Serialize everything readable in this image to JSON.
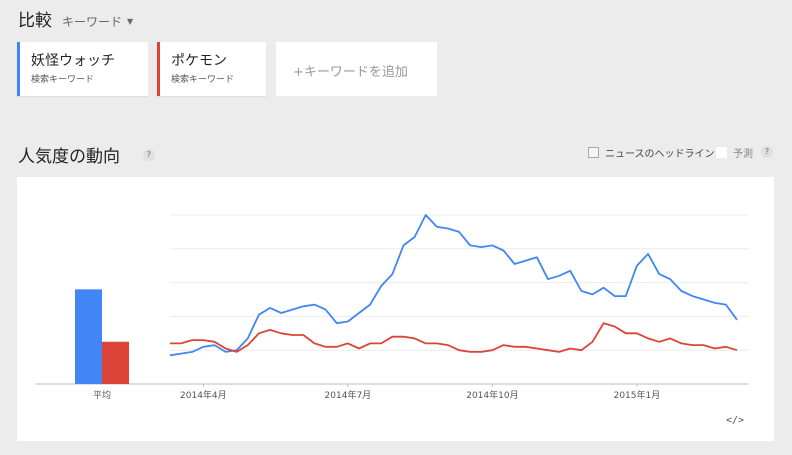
{
  "header": {
    "title": "比較",
    "mode_label": "キーワード"
  },
  "keywords": [
    {
      "name": "妖怪ウォッチ",
      "type": "検索キーワード",
      "color": "#4285f4"
    },
    {
      "name": "ポケモン",
      "type": "検索キーワード",
      "color": "#db4437"
    }
  ],
  "add_keyword_label": "+キーワードを追加",
  "section": {
    "title": "人気度の動向",
    "news_headlines_label": "ニュースのヘッドライン",
    "forecast_label": "予測"
  },
  "chart_data": {
    "type": "line",
    "ylim": [
      0,
      100
    ],
    "grid": true,
    "average": {
      "label": "平均",
      "values": [
        56,
        25
      ]
    },
    "x_ticks": [
      "2014年4月",
      "2014年7月",
      "2014年10月",
      "2015年1月"
    ],
    "x_tick_index": [
      3,
      16,
      29,
      42
    ],
    "series": [
      {
        "color": "#4285f4",
        "values": [
          17,
          18,
          19,
          22,
          23,
          19,
          20,
          27,
          41,
          45,
          42,
          44,
          46,
          47,
          44,
          36,
          37,
          42,
          47,
          58,
          65,
          82,
          87,
          100,
          93,
          92,
          90,
          82,
          81,
          82,
          79,
          71,
          73,
          75,
          62,
          64,
          67,
          55,
          53,
          57,
          52,
          52,
          70,
          77,
          65,
          62,
          55,
          52,
          50,
          48,
          47,
          38
        ]
      },
      {
        "color": "#db4437",
        "values": [
          24,
          24,
          26,
          26,
          25,
          21,
          19,
          23,
          30,
          32,
          30,
          29,
          29,
          24,
          22,
          22,
          24,
          21,
          24,
          24,
          28,
          28,
          27,
          24,
          24,
          23,
          20,
          19,
          19,
          20,
          23,
          22,
          22,
          21,
          20,
          19,
          21,
          20,
          25,
          36,
          34,
          30,
          30,
          27,
          25,
          27,
          24,
          23,
          23,
          21,
          22,
          20
        ]
      }
    ]
  },
  "embed_label": "</>"
}
